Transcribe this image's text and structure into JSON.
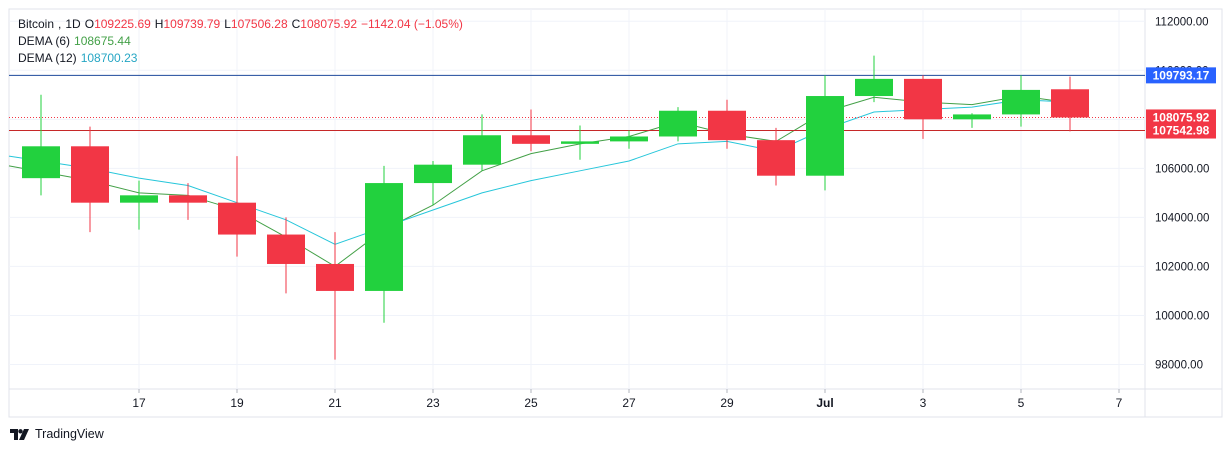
{
  "symbol": {
    "name": "Bitcoin",
    "interval": "1D",
    "open_label": "O",
    "open": "109225.69",
    "high_label": "H",
    "high": "109739.79",
    "low_label": "L",
    "low": "107506.28",
    "close_label": "C",
    "close": "108075.92",
    "change": "−1142.04 (−1.05%)"
  },
  "indicators": [
    {
      "label": "DEMA (6)",
      "value": "108675.44",
      "color": "#43a047"
    },
    {
      "label": "DEMA (12)",
      "value": "108700.23",
      "color": "#26c6da"
    }
  ],
  "price_badges": [
    {
      "value": "109793.17",
      "bg": "#2962ff",
      "line": "#1e4a9c",
      "style": "solid"
    },
    {
      "value": "108075.92",
      "bg": "#f23645",
      "line": "#f23645",
      "style": "dotted"
    },
    {
      "value": "107542.98",
      "bg": "#f23645",
      "line": "#c62828",
      "style": "solid"
    }
  ],
  "brand": {
    "name": "TradingView"
  },
  "colors": {
    "up": "#22d13e",
    "down": "#f23645",
    "grid": "#f0f3fa",
    "axis_text": "#131722"
  },
  "chart_data": {
    "type": "candlestick",
    "ylim": [
      97000,
      112500
    ],
    "y_ticks": [
      98000,
      100000,
      102000,
      104000,
      106000,
      108000,
      110000,
      112000
    ],
    "y_tick_labels": [
      "98000.00",
      "100000.00",
      "102000.00",
      "104000.00",
      "106000.00",
      "108000.00",
      "110000.00",
      "112000.00"
    ],
    "x_ticks": [
      {
        "i": 2,
        "label": "17"
      },
      {
        "i": 4,
        "label": "19"
      },
      {
        "i": 6,
        "label": "21"
      },
      {
        "i": 8,
        "label": "23"
      },
      {
        "i": 10,
        "label": "25"
      },
      {
        "i": 12,
        "label": "27"
      },
      {
        "i": 14,
        "label": "29"
      },
      {
        "i": 16,
        "label": "Jul"
      },
      {
        "i": 18,
        "label": "3"
      },
      {
        "i": 20,
        "label": "5"
      },
      {
        "i": 22,
        "label": "7"
      }
    ],
    "candles": [
      {
        "o": 105600,
        "h": 109000,
        "l": 104900,
        "c": 106900
      },
      {
        "o": 106900,
        "h": 107700,
        "l": 103400,
        "c": 104600
      },
      {
        "o": 104600,
        "h": 105500,
        "l": 103500,
        "c": 104900
      },
      {
        "o": 104900,
        "h": 105400,
        "l": 103900,
        "c": 104600
      },
      {
        "o": 104600,
        "h": 106500,
        "l": 102400,
        "c": 103300
      },
      {
        "o": 103300,
        "h": 104000,
        "l": 100900,
        "c": 102100
      },
      {
        "o": 102100,
        "h": 103400,
        "l": 98200,
        "c": 101000
      },
      {
        "o": 101000,
        "h": 106100,
        "l": 99700,
        "c": 105400
      },
      {
        "o": 105400,
        "h": 106300,
        "l": 104500,
        "c": 106150
      },
      {
        "o": 106150,
        "h": 108200,
        "l": 105900,
        "c": 107350
      },
      {
        "o": 107350,
        "h": 108400,
        "l": 106700,
        "c": 107000
      },
      {
        "o": 107000,
        "h": 107750,
        "l": 106350,
        "c": 107100
      },
      {
        "o": 107100,
        "h": 107550,
        "l": 106800,
        "c": 107300
      },
      {
        "o": 107300,
        "h": 108500,
        "l": 107100,
        "c": 108350
      },
      {
        "o": 108350,
        "h": 108800,
        "l": 106800,
        "c": 107150
      },
      {
        "o": 107150,
        "h": 107650,
        "l": 105300,
        "c": 105700
      },
      {
        "o": 105700,
        "h": 109800,
        "l": 105100,
        "c": 108950
      },
      {
        "o": 108950,
        "h": 110600,
        "l": 108700,
        "c": 109650
      },
      {
        "o": 109650,
        "h": 109800,
        "l": 107200,
        "c": 108000
      },
      {
        "o": 108000,
        "h": 108250,
        "l": 107650,
        "c": 108200
      },
      {
        "o": 108200,
        "h": 109800,
        "l": 107700,
        "c": 109200
      },
      {
        "o": 109225.69,
        "h": 109739.79,
        "l": 107506.28,
        "c": 108075.92
      }
    ],
    "series": [
      {
        "name": "DEMA (6)",
        "color": "#43a047",
        "values": [
          106100,
          105500,
          105000,
          104900,
          104300,
          103200,
          102000,
          103500,
          104500,
          105900,
          106600,
          107000,
          107300,
          107900,
          107400,
          107100,
          108300,
          108900,
          108700,
          108600,
          108950,
          108675.44
        ]
      },
      {
        "name": "DEMA (12)",
        "color": "#26c6da",
        "values": [
          106500,
          106000,
          105600,
          105300,
          104600,
          103900,
          102900,
          103600,
          104300,
          105000,
          105500,
          105900,
          106300,
          107000,
          107100,
          106700,
          107600,
          108300,
          108400,
          108500,
          108800,
          108700.23
        ]
      }
    ]
  }
}
